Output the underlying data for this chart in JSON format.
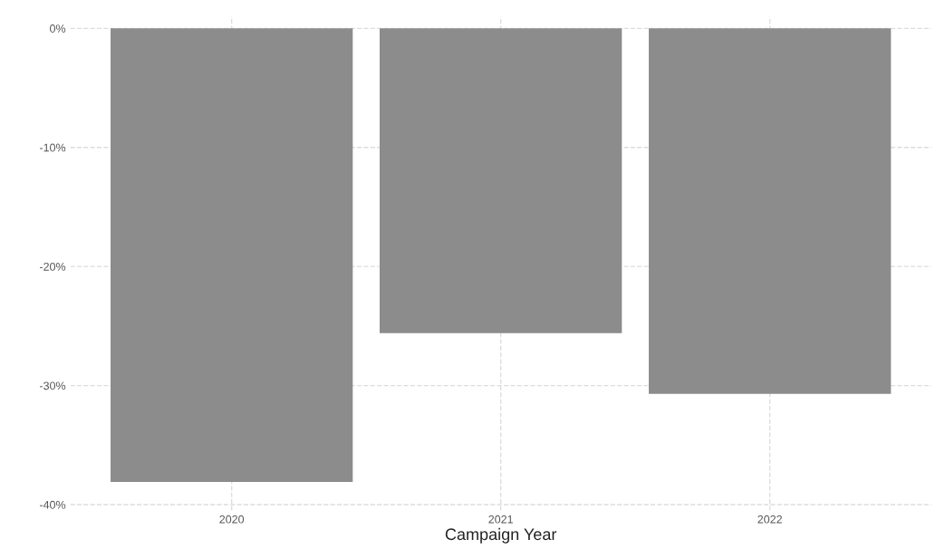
{
  "chart_data": {
    "type": "bar",
    "xlabel": "Campaign Year",
    "categories": [
      "2020",
      "2021",
      "2022"
    ],
    "values": [
      -38.1,
      -25.6,
      -30.7
    ],
    "color": "#8c8c8c",
    "ylim": [
      -40.5,
      1
    ],
    "yticks": [
      {
        "value": -40,
        "label": "-40%"
      },
      {
        "value": -30,
        "label": "-30%"
      },
      {
        "value": -20,
        "label": "-20%"
      },
      {
        "value": -10,
        "label": "-10%"
      },
      {
        "value": 0,
        "label": "0%"
      }
    ],
    "grid": true
  }
}
